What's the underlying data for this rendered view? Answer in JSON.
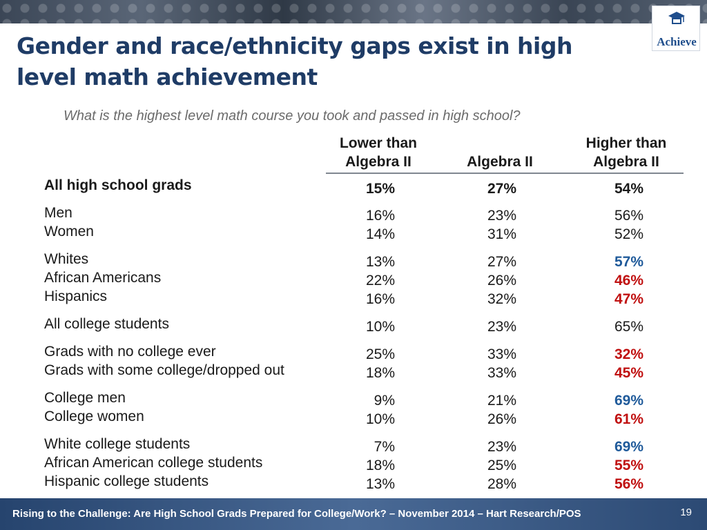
{
  "title": "Gender and race/ethnicity gaps exist in high level math achievement",
  "subtitle": "What is the highest level math course you took and passed in high school?",
  "logo": {
    "text": "Achieve",
    "icon": "book-cap-icon"
  },
  "columns": [
    {
      "label_line1": "Lower than",
      "label_line2": "Algebra II"
    },
    {
      "label_line1": "",
      "label_line2": "Algebra II"
    },
    {
      "label_line1": "Higher than",
      "label_line2": "Algebra II"
    }
  ],
  "colors": {
    "text": "#1a1a1a",
    "blue": "#1f5a9a",
    "red": "#c01010",
    "title": "#1f3c66"
  },
  "rows": [
    {
      "label": "All high school grads",
      "bold": true,
      "values": [
        "15%",
        "27%",
        "54%"
      ],
      "highlight": "none"
    },
    {
      "label": "Men",
      "bold": false,
      "values": [
        "16%",
        "23%",
        "56%"
      ],
      "highlight": "none"
    },
    {
      "label": "Women",
      "bold": false,
      "values": [
        "14%",
        "31%",
        "52%"
      ],
      "highlight": "none"
    },
    {
      "label": "Whites",
      "bold": false,
      "values": [
        "13%",
        "27%",
        "57%"
      ],
      "highlight": "blue"
    },
    {
      "label": "African Americans",
      "bold": false,
      "values": [
        "22%",
        "26%",
        "46%"
      ],
      "highlight": "red"
    },
    {
      "label": "Hispanics",
      "bold": false,
      "values": [
        "16%",
        "32%",
        "47%"
      ],
      "highlight": "red"
    },
    {
      "label": "All college students",
      "bold": false,
      "values": [
        "10%",
        "23%",
        "65%"
      ],
      "highlight": "none"
    },
    {
      "label": "Grads with no college ever",
      "bold": false,
      "values": [
        "25%",
        "33%",
        "32%"
      ],
      "highlight": "red"
    },
    {
      "label": "Grads with some college/dropped out",
      "bold": false,
      "values": [
        "18%",
        "33%",
        "45%"
      ],
      "highlight": "red"
    },
    {
      "label": "College men",
      "bold": false,
      "values": [
        "9%",
        "21%",
        "69%"
      ],
      "highlight": "blue"
    },
    {
      "label": "College women",
      "bold": false,
      "values": [
        "10%",
        "26%",
        "61%"
      ],
      "highlight": "red"
    },
    {
      "label": "White college students",
      "bold": false,
      "values": [
        "7%",
        "23%",
        "69%"
      ],
      "highlight": "blue"
    },
    {
      "label": "African American college students",
      "bold": false,
      "values": [
        "18%",
        "25%",
        "55%"
      ],
      "highlight": "red"
    },
    {
      "label": "Hispanic college students",
      "bold": false,
      "values": [
        "13%",
        "28%",
        "56%"
      ],
      "highlight": "red"
    }
  ],
  "footer": {
    "text": "Rising to the Challenge:  Are High School Grads Prepared for College/Work? – November 2014 – Hart Research/POS",
    "page_number": "19"
  }
}
